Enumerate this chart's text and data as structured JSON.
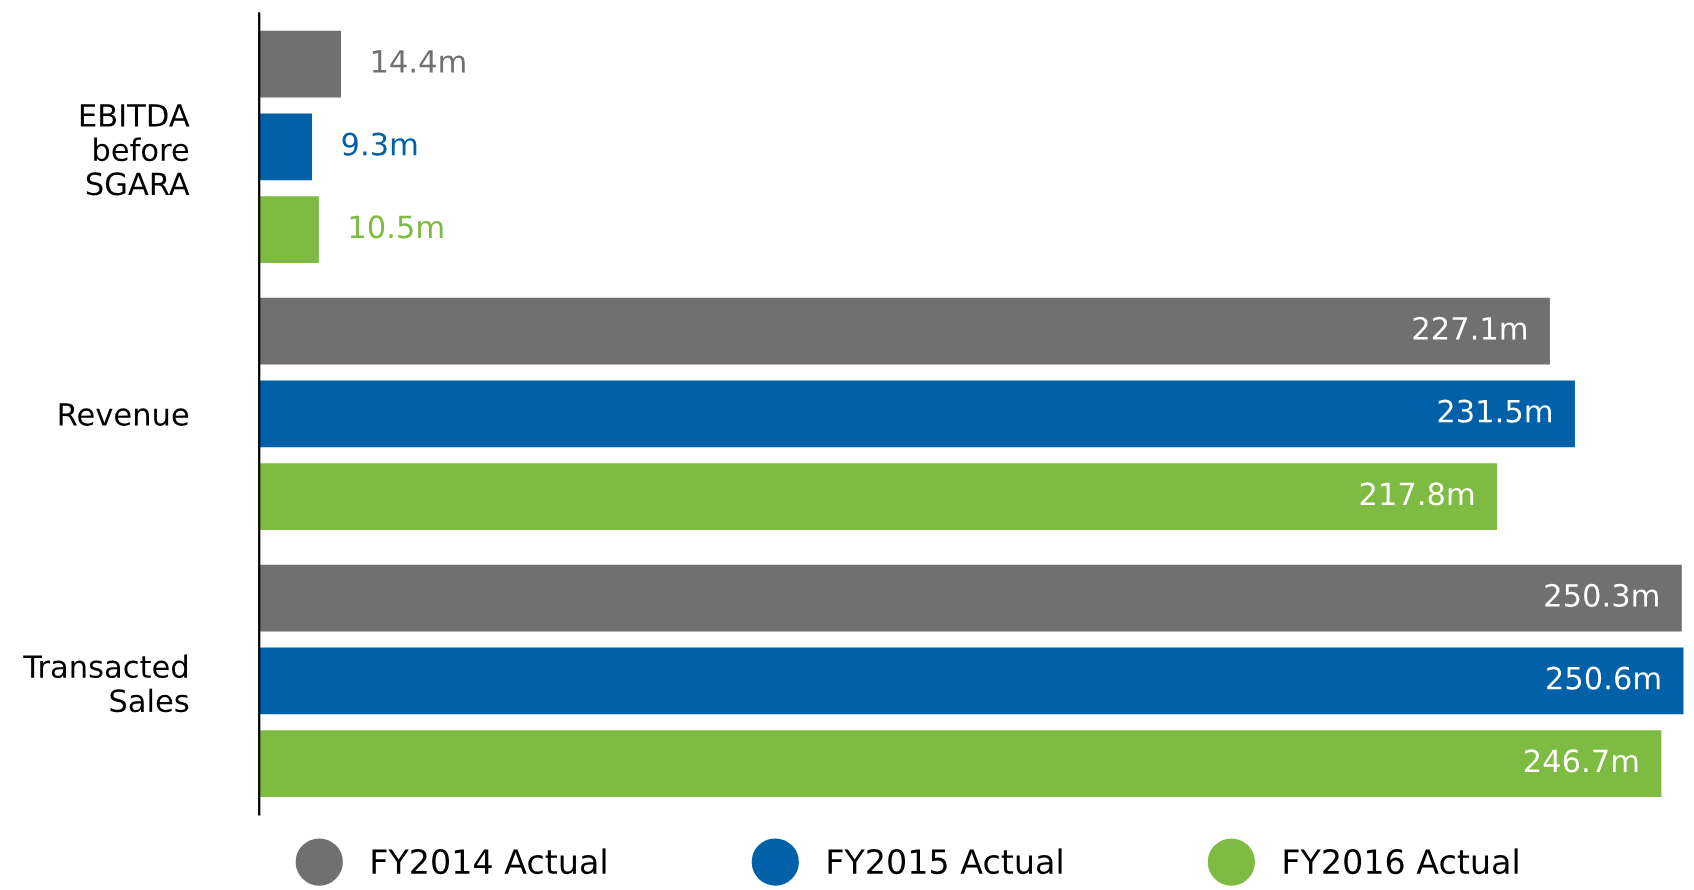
{
  "chart_data": {
    "type": "bar",
    "orientation": "horizontal",
    "categories": [
      "EBITDA\nbefore\nSGARA",
      "Revenue",
      "Transacted\nSales"
    ],
    "series": [
      {
        "name": "FY2014 Actual",
        "color": "#707070",
        "values": [
          14.4,
          227.1,
          250.3
        ],
        "value_labels": [
          "14.4m",
          "227.1m",
          "250.3m"
        ]
      },
      {
        "name": "FY2015 Actual",
        "color": "#0061a8",
        "values": [
          9.3,
          231.5,
          250.6
        ],
        "value_labels": [
          "9.3m",
          "231.5m",
          "250.6m"
        ]
      },
      {
        "name": "FY2016 Actual",
        "color": "#7dbb42",
        "values": [
          10.5,
          217.8,
          246.7
        ],
        "value_labels": [
          "10.5m",
          "217.8m",
          "246.7m"
        ]
      }
    ],
    "legend": "bottom",
    "grid": false
  }
}
